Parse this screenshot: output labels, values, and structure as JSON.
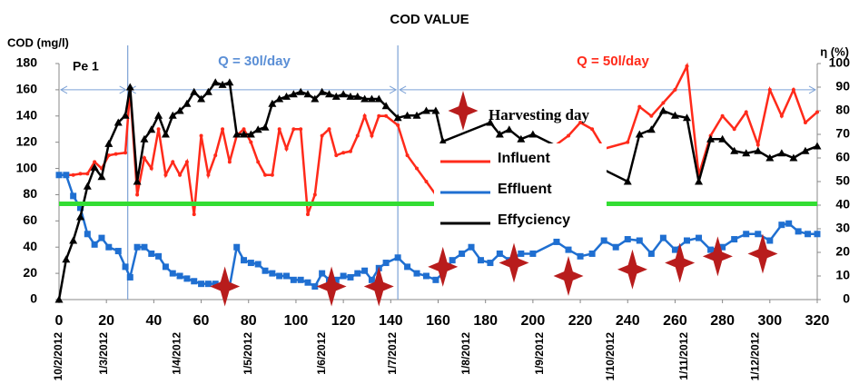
{
  "chart_data": {
    "type": "line",
    "title": "COD VALUE",
    "y_label": "COD (mg/l)",
    "y2_label": "η (%)",
    "annotations": [
      "Pe 1",
      "Q = 30l/day",
      "Q = 50l/day"
    ],
    "xlim": [
      0,
      320
    ],
    "xticks": [
      0,
      20,
      40,
      60,
      80,
      100,
      120,
      140,
      160,
      180,
      200,
      220,
      240,
      260,
      280,
      300,
      320
    ],
    "ylim": [
      0,
      180
    ],
    "yticks": [
      0,
      20,
      40,
      60,
      80,
      100,
      120,
      140,
      160,
      180
    ],
    "y2lim": [
      0,
      100
    ],
    "y2ticks": [
      0,
      10,
      20,
      30,
      40,
      50,
      60,
      70,
      80,
      90,
      100
    ],
    "date_ticks": [
      {
        "value": 0,
        "label": "10/2/2012"
      },
      {
        "value": 19,
        "label": "1/3/2012"
      },
      {
        "value": 50,
        "label": "1/4/2012"
      },
      {
        "value": 80,
        "label": "1/5/2012"
      },
      {
        "value": 111,
        "label": "1/6/2012"
      },
      {
        "value": 141,
        "label": "1/7/2012"
      },
      {
        "value": 172,
        "label": "1/8/2012"
      },
      {
        "value": 203,
        "label": "1/9/2012"
      },
      {
        "value": 233,
        "label": "1/10/2012"
      },
      {
        "value": 264,
        "label": "1/11/2012"
      },
      {
        "value": 294,
        "label": "1/12/2012"
      }
    ],
    "phase_lines": [
      29,
      143
    ],
    "limit_line": 73,
    "limit_color": "#33dd33",
    "series": [
      {
        "name": "Influent",
        "color": "#ff2a1a",
        "marker": "dot",
        "x": [
          0,
          3,
          6,
          9,
          12,
          15,
          18,
          21,
          24,
          28,
          30,
          33,
          36,
          39,
          42,
          45,
          48,
          51,
          54,
          57,
          60,
          63,
          66,
          69,
          72,
          75,
          78,
          81,
          84,
          87,
          90,
          93,
          96,
          99,
          102,
          105,
          108,
          111,
          114,
          117,
          120,
          123,
          126,
          129,
          132,
          135,
          138,
          143,
          147,
          151,
          155,
          159,
          162,
          190,
          200,
          215,
          220,
          225,
          230,
          240,
          245,
          250,
          255,
          260,
          265,
          270,
          275,
          280,
          285,
          290,
          295,
          300,
          305,
          310,
          315,
          320
        ],
        "values": [
          95,
          95,
          95,
          96,
          96,
          105,
          100,
          110,
          111,
          112,
          160,
          80,
          108,
          100,
          130,
          95,
          105,
          95,
          105,
          65,
          125,
          95,
          110,
          130,
          105,
          125,
          130,
          120,
          105,
          95,
          95,
          130,
          115,
          130,
          130,
          65,
          80,
          125,
          130,
          110,
          112,
          113,
          125,
          140,
          125,
          140,
          140,
          133,
          110,
          100,
          90,
          80,
          80,
          115,
          105,
          125,
          135,
          130,
          115,
          120,
          147,
          140,
          150,
          160,
          178,
          95,
          125,
          140,
          130,
          143,
          118,
          160,
          140,
          160,
          135,
          143
        ]
      },
      {
        "name": "Effluent",
        "color": "#1f6fd1",
        "marker": "square",
        "x": [
          0,
          3,
          6,
          9,
          12,
          15,
          18,
          21,
          25,
          28,
          30,
          33,
          36,
          39,
          42,
          45,
          48,
          51,
          54,
          57,
          60,
          63,
          66,
          69,
          72,
          75,
          78,
          81,
          84,
          87,
          90,
          93,
          96,
          99,
          102,
          105,
          108,
          111,
          114,
          117,
          120,
          123,
          126,
          129,
          132,
          135,
          138,
          143,
          147,
          151,
          155,
          159,
          162,
          166,
          170,
          174,
          178,
          182,
          186,
          190,
          195,
          200,
          210,
          215,
          220,
          225,
          230,
          235,
          240,
          245,
          250,
          255,
          260,
          265,
          270,
          275,
          280,
          285,
          290,
          295,
          300,
          305,
          308,
          312,
          316,
          320
        ],
        "values": [
          95,
          95,
          79,
          70,
          50,
          42,
          47,
          40,
          37,
          25,
          17,
          40,
          40,
          35,
          33,
          25,
          20,
          18,
          16,
          14,
          12,
          12,
          12,
          11,
          10,
          40,
          30,
          28,
          27,
          22,
          20,
          18,
          18,
          15,
          15,
          13,
          10,
          20,
          15,
          15,
          18,
          17,
          20,
          22,
          15,
          24,
          28,
          32,
          25,
          20,
          18,
          15,
          20,
          30,
          35,
          40,
          30,
          28,
          35,
          30,
          35,
          35,
          44,
          38,
          33,
          35,
          45,
          40,
          46,
          45,
          35,
          47,
          38,
          45,
          47,
          38,
          40,
          46,
          50,
          50,
          45,
          57,
          58,
          52,
          50,
          50
        ]
      },
      {
        "name": "Effyciency",
        "color": "#000000",
        "marker": "triangle",
        "axis": "y2",
        "x": [
          0,
          3,
          6,
          9,
          12,
          15,
          18,
          21,
          25,
          28,
          30,
          33,
          36,
          39,
          42,
          45,
          48,
          51,
          54,
          57,
          60,
          63,
          66,
          69,
          72,
          75,
          78,
          81,
          84,
          87,
          90,
          93,
          96,
          99,
          102,
          105,
          108,
          111,
          114,
          117,
          120,
          123,
          126,
          129,
          132,
          135,
          138,
          143,
          147,
          151,
          155,
          159,
          162,
          182,
          186,
          190,
          195,
          200,
          240,
          245,
          250,
          255,
          260,
          265,
          270,
          275,
          280,
          285,
          290,
          295,
          300,
          305,
          310,
          315,
          320
        ],
        "values": [
          0,
          17,
          25,
          35,
          48,
          56,
          52,
          66,
          75,
          78,
          90,
          50,
          68,
          72,
          78,
          70,
          78,
          80,
          83,
          88,
          85,
          88,
          92,
          91,
          92,
          70,
          70,
          70,
          72,
          73,
          83,
          85,
          86,
          87,
          88,
          87,
          85,
          88,
          87,
          86,
          87,
          86,
          86,
          85,
          85,
          85,
          82,
          77,
          78,
          78,
          80,
          80,
          67,
          75,
          70,
          72,
          68,
          70,
          50,
          70,
          72,
          80,
          78,
          77,
          50,
          68,
          68,
          63,
          62,
          63,
          60,
          62,
          60,
          63,
          65
        ]
      }
    ],
    "harvest": {
      "name": "Harvesting day",
      "color": "#b81c1c",
      "x": [
        70,
        115,
        135,
        162,
        192,
        215,
        242,
        262,
        278,
        297
      ],
      "values": [
        10,
        10,
        10,
        25,
        28,
        18,
        23,
        28,
        33,
        35
      ]
    }
  }
}
